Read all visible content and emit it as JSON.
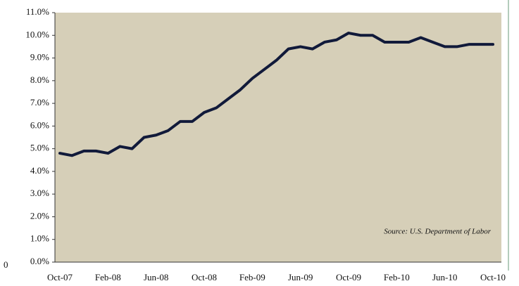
{
  "chart_data": {
    "type": "line",
    "y_axis_title": "0",
    "annotation": "Source: U.S. Department of Labor",
    "categories": [
      "Oct-07",
      null,
      null,
      null,
      "Feb-08",
      null,
      null,
      null,
      "Jun-08",
      null,
      null,
      null,
      "Oct-08",
      null,
      null,
      null,
      "Feb-09",
      null,
      null,
      null,
      "Jun-09",
      null,
      null,
      null,
      "Oct-09",
      null,
      null,
      null,
      "Feb-10",
      null,
      null,
      null,
      "Jun-10",
      null,
      null,
      null,
      "Oct-10"
    ],
    "series": [
      {
        "color": "#111a3a",
        "values": [
          4.8,
          4.7,
          4.9,
          4.9,
          4.8,
          5.1,
          5.0,
          5.5,
          5.6,
          5.8,
          6.2,
          6.2,
          6.6,
          6.8,
          7.2,
          7.6,
          8.1,
          8.5,
          8.9,
          9.4,
          9.5,
          9.4,
          9.7,
          9.8,
          10.1,
          10.0,
          10.0,
          9.7,
          9.7,
          9.7,
          9.9,
          9.7,
          9.5,
          9.5,
          9.6,
          9.6,
          9.6
        ]
      }
    ],
    "ylim": [
      0,
      11
    ],
    "yticks": [
      {
        "value": 0,
        "label": "0.0%"
      },
      {
        "value": 1,
        "label": "1.0%"
      },
      {
        "value": 2,
        "label": "2.0%"
      },
      {
        "value": 3,
        "label": "3.0%"
      },
      {
        "value": 4,
        "label": "4.0%"
      },
      {
        "value": 5,
        "label": "5.0%"
      },
      {
        "value": 6,
        "label": "6.0%"
      },
      {
        "value": 7,
        "label": "7.0%"
      },
      {
        "value": 8,
        "label": "8.0%"
      },
      {
        "value": 9,
        "label": "9.0%"
      },
      {
        "value": 10,
        "label": "10.0%"
      },
      {
        "value": 11,
        "label": "11.0%"
      }
    ],
    "background": "#d6cfb8"
  }
}
